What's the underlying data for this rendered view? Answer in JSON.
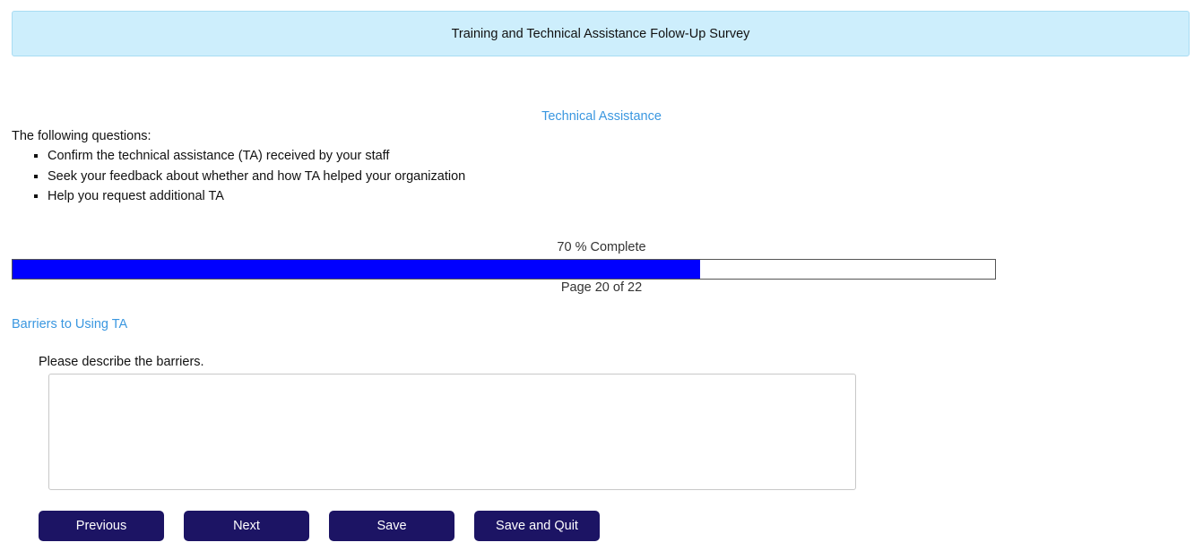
{
  "header": {
    "title": "Training and Technical Assistance Folow-Up Survey"
  },
  "section": {
    "title": "Technical Assistance"
  },
  "intro": {
    "lead": "The following questions:",
    "bullets": [
      "Confirm the technical assistance (TA) received by your staff",
      "Seek your feedback about whether and how TA helped your organization",
      "Help you request additional TA"
    ]
  },
  "progress": {
    "label": "70 % Complete",
    "percent": 70,
    "page_label": "Page 20 of 22",
    "fill_color": "#0000ff"
  },
  "question": {
    "subheading": "Barriers to Using TA",
    "label": "Please describe the barriers.",
    "value": ""
  },
  "buttons": {
    "previous": "Previous",
    "next": "Next",
    "save": "Save",
    "save_quit": "Save and Quit"
  }
}
